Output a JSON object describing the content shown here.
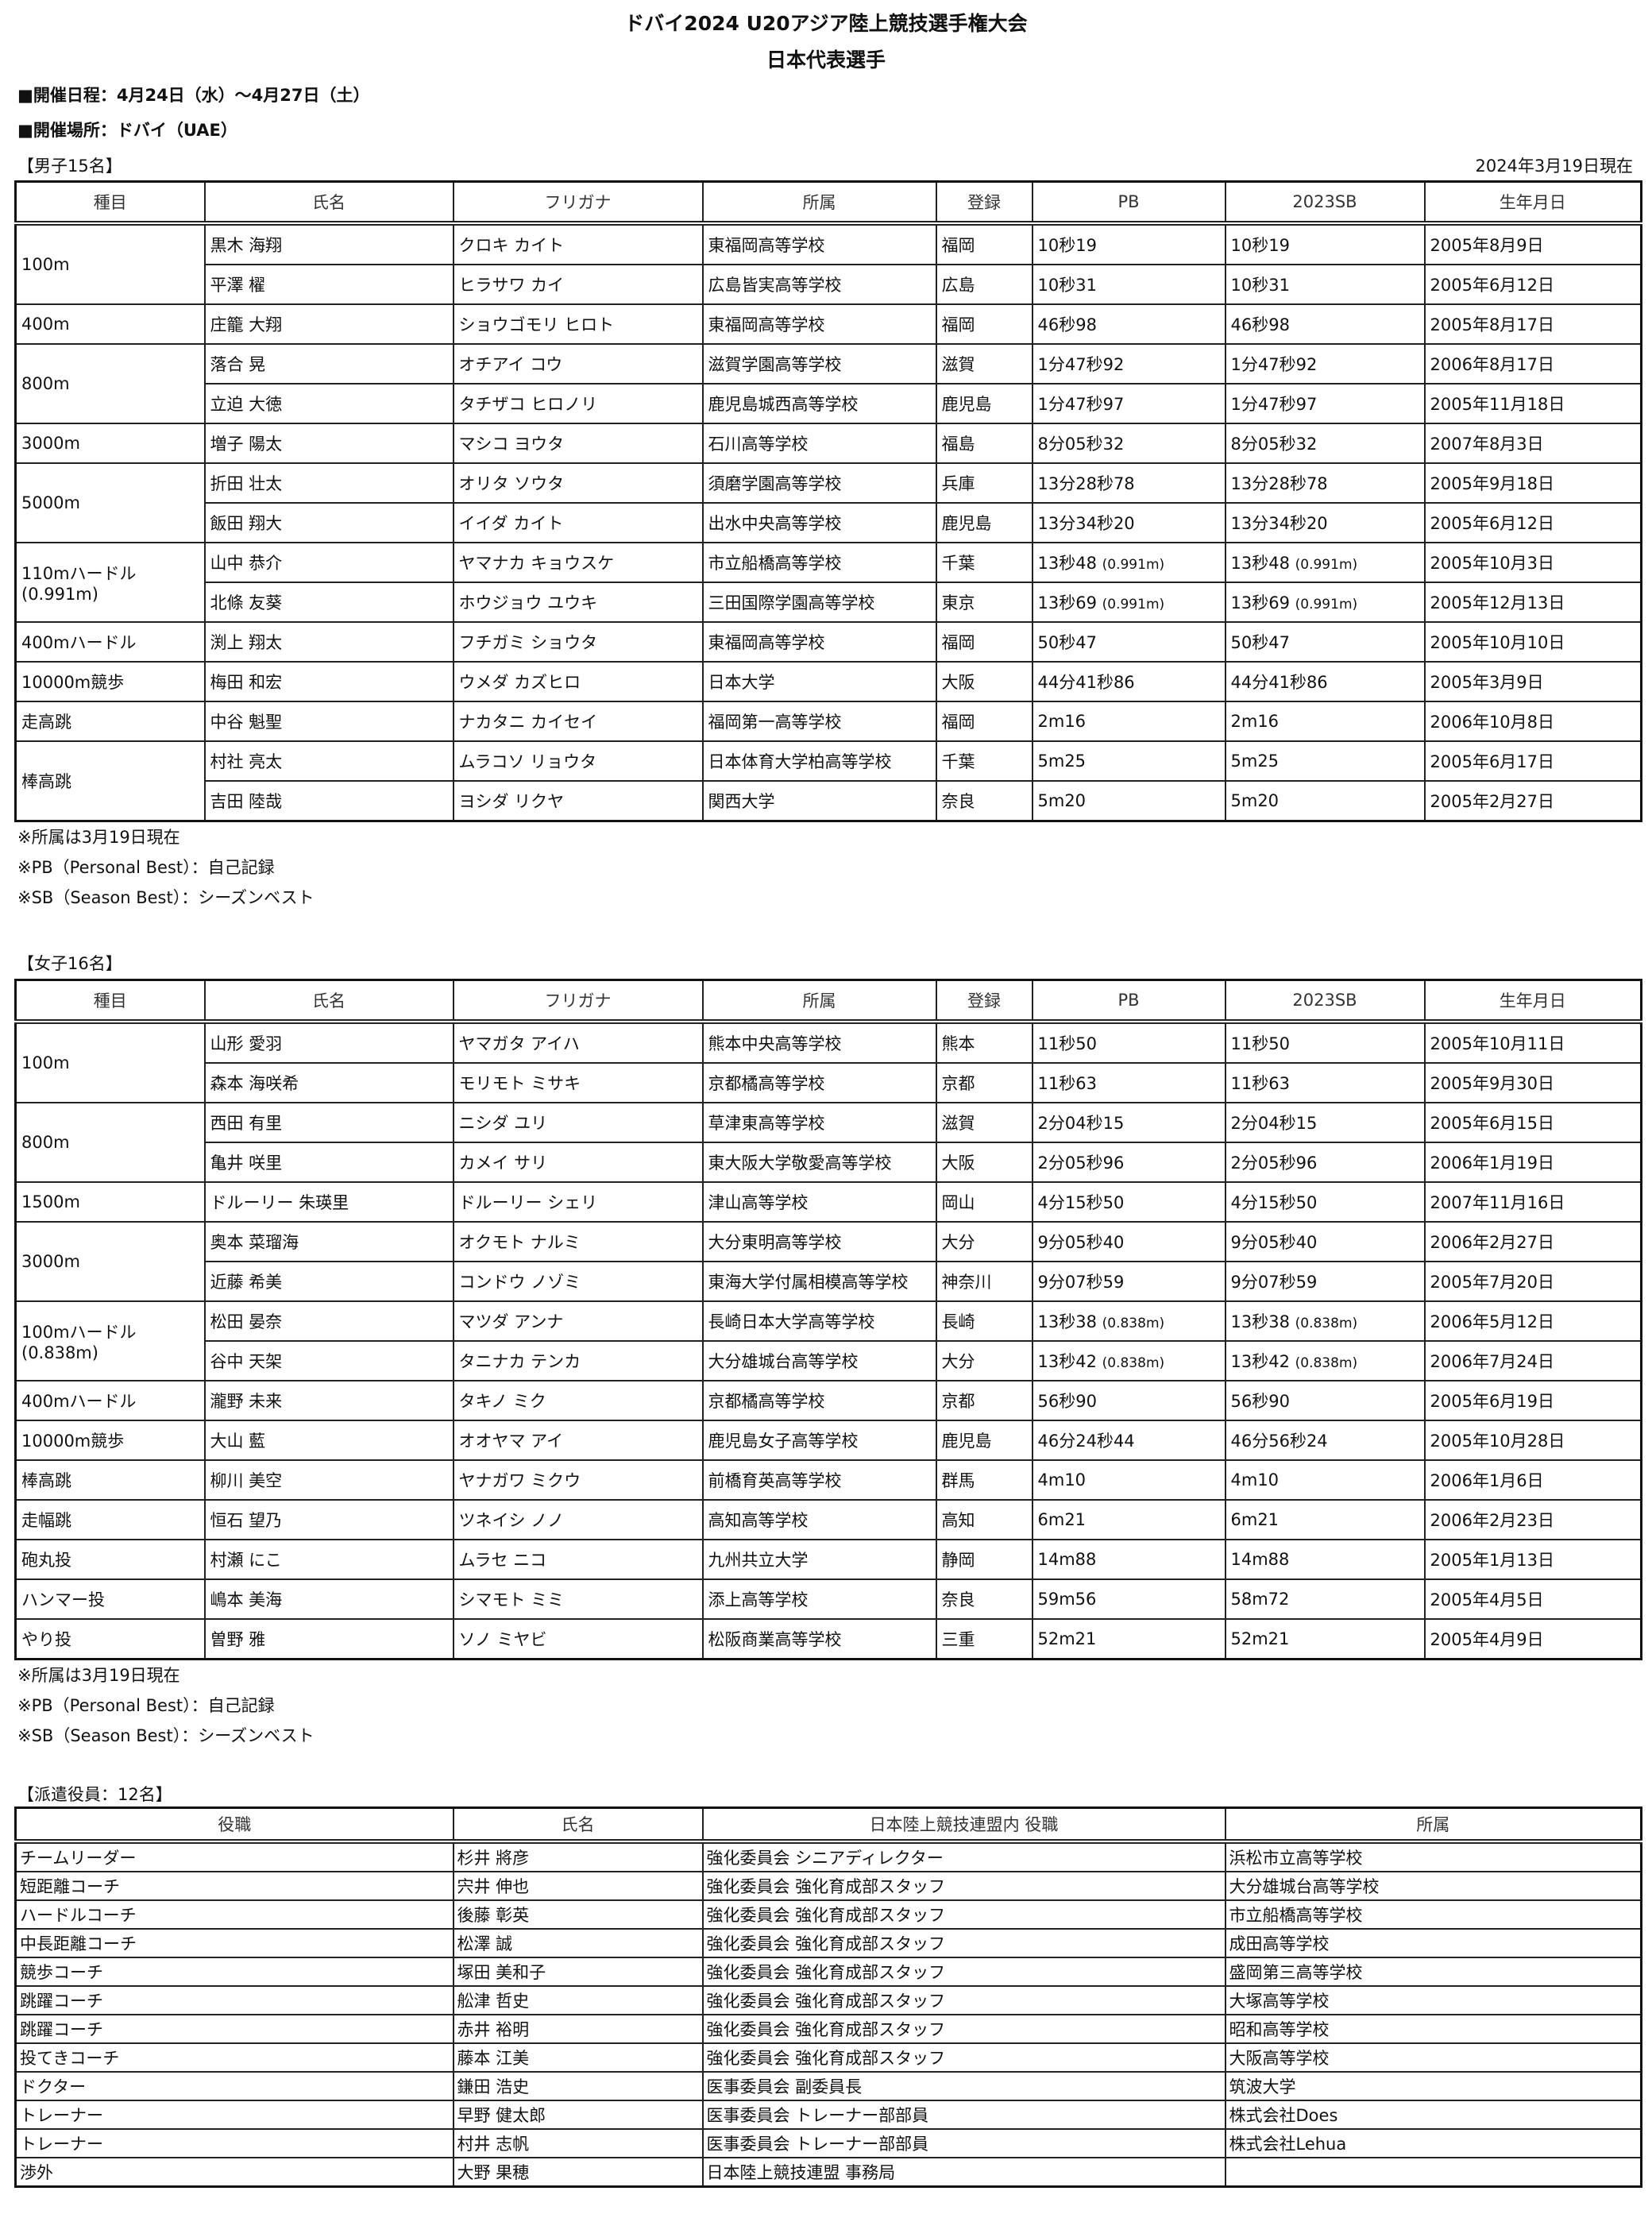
{
  "header": {
    "title": "ドバイ2024 U20アジア陸上競技選手権大会",
    "subtitle": "日本代表選手",
    "dates": "■開催日程：4月24日（水）～4月27日（土）",
    "venue": "■開催場所：ドバイ（UAE）"
  },
  "columns": [
    "種目",
    "氏名",
    "フリガナ",
    "所属",
    "登録",
    "PB",
    "2023SB",
    "生年月日"
  ],
  "notes": [
    "※所属は3月19日現在",
    "※PB（Personal Best）：自己記録",
    "※SB（Season Best）：シーズンベスト"
  ],
  "men": {
    "label": "【男子15名】",
    "as_of": "2024年3月19日現在",
    "events": [
      {
        "event": "100m",
        "athletes": [
          {
            "name": "黒木 海翔",
            "kana": "クロキ カイト",
            "team": "東福岡高等学校",
            "reg": "福岡",
            "pb": "10秒19",
            "sb": "10秒19",
            "dob": "2005年8月9日"
          },
          {
            "name": "平澤 櫂",
            "kana": "ヒラサワ カイ",
            "team": "広島皆実高等学校",
            "reg": "広島",
            "pb": "10秒31",
            "sb": "10秒31",
            "dob": "2005年6月12日"
          }
        ]
      },
      {
        "event": "400m",
        "athletes": [
          {
            "name": "庄籠 大翔",
            "kana": "ショウゴモリ ヒロト",
            "team": "東福岡高等学校",
            "reg": "福岡",
            "pb": "46秒98",
            "sb": "46秒98",
            "dob": "2005年8月17日"
          }
        ]
      },
      {
        "event": "800m",
        "athletes": [
          {
            "name": "落合 晃",
            "kana": "オチアイ コウ",
            "team": "滋賀学園高等学校",
            "reg": "滋賀",
            "pb": "1分47秒92",
            "sb": "1分47秒92",
            "dob": "2006年8月17日"
          },
          {
            "name": "立迫 大徳",
            "kana": "タチザコ ヒロノリ",
            "team": "鹿児島城西高等学校",
            "reg": "鹿児島",
            "pb": "1分47秒97",
            "sb": "1分47秒97",
            "dob": "2005年11月18日"
          }
        ]
      },
      {
        "event": "3000m",
        "athletes": [
          {
            "name": "増子 陽太",
            "kana": "マシコ ヨウタ",
            "team": "石川高等学校",
            "reg": "福島",
            "pb": "8分05秒32",
            "sb": "8分05秒32",
            "dob": "2007年8月3日"
          }
        ]
      },
      {
        "event": "5000m",
        "athletes": [
          {
            "name": "折田 壮太",
            "kana": "オリタ ソウタ",
            "team": "須磨学園高等学校",
            "reg": "兵庫",
            "pb": "13分28秒78",
            "sb": "13分28秒78",
            "dob": "2005年9月18日"
          },
          {
            "name": "飯田 翔大",
            "kana": "イイダ カイト",
            "team": "出水中央高等学校",
            "reg": "鹿児島",
            "pb": "13分34秒20",
            "sb": "13分34秒20",
            "dob": "2005年6月12日"
          }
        ]
      },
      {
        "event": "110mハードル",
        "event2": "(0.991m)",
        "athletes": [
          {
            "name": "山中 恭介",
            "kana": "ヤマナカ キョウスケ",
            "team": "市立船橋高等学校",
            "reg": "千葉",
            "pb": "13秒48",
            "pb_note": "(0.991m)",
            "sb": "13秒48",
            "sb_note": "(0.991m)",
            "dob": "2005年10月3日"
          },
          {
            "name": "北條 友葵",
            "kana": "ホウジョウ ユウキ",
            "team": "三田国際学園高等学校",
            "reg": "東京",
            "pb": "13秒69",
            "pb_note": "(0.991m)",
            "sb": "13秒69",
            "sb_note": "(0.991m)",
            "dob": "2005年12月13日"
          }
        ]
      },
      {
        "event": "400mハードル",
        "athletes": [
          {
            "name": "渕上 翔太",
            "kana": "フチガミ ショウタ",
            "team": "東福岡高等学校",
            "reg": "福岡",
            "pb": "50秒47",
            "sb": "50秒47",
            "dob": "2005年10月10日"
          }
        ]
      },
      {
        "event": "10000m競歩",
        "athletes": [
          {
            "name": "梅田 和宏",
            "kana": "ウメダ カズヒロ",
            "team": "日本大学",
            "reg": "大阪",
            "pb": "44分41秒86",
            "sb": "44分41秒86",
            "dob": "2005年3月9日"
          }
        ]
      },
      {
        "event": "走高跳",
        "athletes": [
          {
            "name": "中谷 魁聖",
            "kana": "ナカタニ カイセイ",
            "team": "福岡第一高等学校",
            "reg": "福岡",
            "pb": "2m16",
            "sb": "2m16",
            "dob": "2006年10月8日"
          }
        ]
      },
      {
        "event": "棒高跳",
        "athletes": [
          {
            "name": "村社 亮太",
            "kana": "ムラコソ リョウタ",
            "team": "日本体育大学柏高等学校",
            "reg": "千葉",
            "pb": "5m25",
            "sb": "5m25",
            "dob": "2005年6月17日"
          },
          {
            "name": "吉田 陸哉",
            "kana": "ヨシダ リクヤ",
            "team": "関西大学",
            "reg": "奈良",
            "pb": "5m20",
            "sb": "5m20",
            "dob": "2005年2月27日"
          }
        ]
      }
    ]
  },
  "women": {
    "label": "【女子16名】",
    "events": [
      {
        "event": "100m",
        "athletes": [
          {
            "name": "山形 愛羽",
            "kana": "ヤマガタ アイハ",
            "team": "熊本中央高等学校",
            "reg": "熊本",
            "pb": "11秒50",
            "sb": "11秒50",
            "dob": "2005年10月11日"
          },
          {
            "name": "森本 海咲希",
            "kana": "モリモト ミサキ",
            "team": "京都橘高等学校",
            "reg": "京都",
            "pb": "11秒63",
            "sb": "11秒63",
            "dob": "2005年9月30日"
          }
        ]
      },
      {
        "event": "800m",
        "athletes": [
          {
            "name": "西田 有里",
            "kana": "ニシダ ユリ",
            "team": "草津東高等学校",
            "reg": "滋賀",
            "pb": "2分04秒15",
            "sb": "2分04秒15",
            "dob": "2005年6月15日"
          },
          {
            "name": "亀井 咲里",
            "kana": "カメイ サリ",
            "team": "東大阪大学敬愛高等学校",
            "reg": "大阪",
            "pb": "2分05秒96",
            "sb": "2分05秒96",
            "dob": "2006年1月19日"
          }
        ]
      },
      {
        "event": "1500m",
        "athletes": [
          {
            "name": "ドルーリー 朱瑛里",
            "kana": "ドルーリー シェリ",
            "team": "津山高等学校",
            "reg": "岡山",
            "pb": "4分15秒50",
            "sb": "4分15秒50",
            "dob": "2007年11月16日"
          }
        ]
      },
      {
        "event": "3000m",
        "athletes": [
          {
            "name": "奥本 菜瑠海",
            "kana": "オクモト ナルミ",
            "team": "大分東明高等学校",
            "reg": "大分",
            "pb": "9分05秒40",
            "sb": "9分05秒40",
            "dob": "2006年2月27日"
          },
          {
            "name": "近藤 希美",
            "kana": "コンドウ ノゾミ",
            "team": "東海大学付属相模高等学校",
            "reg": "神奈川",
            "pb": "9分07秒59",
            "sb": "9分07秒59",
            "dob": "2005年7月20日"
          }
        ]
      },
      {
        "event": "100mハードル",
        "event2": "(0.838m)",
        "athletes": [
          {
            "name": "松田 晏奈",
            "kana": "マツダ アンナ",
            "team": "長崎日本大学高等学校",
            "reg": "長崎",
            "pb": "13秒38",
            "pb_note": "(0.838m)",
            "sb": "13秒38",
            "sb_note": "(0.838m)",
            "dob": "2006年5月12日"
          },
          {
            "name": "谷中 天架",
            "kana": "タニナカ テンカ",
            "team": "大分雄城台高等学校",
            "reg": "大分",
            "pb": "13秒42",
            "pb_note": "(0.838m)",
            "sb": "13秒42",
            "sb_note": "(0.838m)",
            "dob": "2006年7月24日"
          }
        ]
      },
      {
        "event": "400mハードル",
        "athletes": [
          {
            "name": "瀧野 未来",
            "kana": "タキノ ミク",
            "team": "京都橘高等学校",
            "reg": "京都",
            "pb": "56秒90",
            "sb": "56秒90",
            "dob": "2005年6月19日"
          }
        ]
      },
      {
        "event": "10000m競歩",
        "athletes": [
          {
            "name": "大山 藍",
            "kana": "オオヤマ アイ",
            "team": "鹿児島女子高等学校",
            "reg": "鹿児島",
            "pb": "46分24秒44",
            "sb": "46分56秒24",
            "dob": "2005年10月28日"
          }
        ]
      },
      {
        "event": "棒高跳",
        "athletes": [
          {
            "name": "柳川 美空",
            "kana": "ヤナガワ ミクウ",
            "team": "前橋育英高等学校",
            "reg": "群馬",
            "pb": "4m10",
            "sb": "4m10",
            "dob": "2006年1月6日"
          }
        ]
      },
      {
        "event": "走幅跳",
        "athletes": [
          {
            "name": "恒石 望乃",
            "kana": "ツネイシ ノノ",
            "team": "高知高等学校",
            "reg": "高知",
            "pb": "6m21",
            "sb": "6m21",
            "dob": "2006年2月23日"
          }
        ]
      },
      {
        "event": "砲丸投",
        "athletes": [
          {
            "name": "村瀬 にこ",
            "kana": "ムラセ ニコ",
            "team": "九州共立大学",
            "reg": "静岡",
            "pb": "14m88",
            "sb": "14m88",
            "dob": "2005年1月13日"
          }
        ]
      },
      {
        "event": "ハンマー投",
        "athletes": [
          {
            "name": "嶋本 美海",
            "kana": "シマモト ミミ",
            "team": "添上高等学校",
            "reg": "奈良",
            "pb": "59m56",
            "sb": "58m72",
            "dob": "2005年4月5日"
          }
        ]
      },
      {
        "event": "やり投",
        "athletes": [
          {
            "name": "曽野 雅",
            "kana": "ソノ ミヤビ",
            "team": "松阪商業高等学校",
            "reg": "三重",
            "pb": "52m21",
            "sb": "52m21",
            "dob": "2005年4月9日"
          }
        ]
      }
    ]
  },
  "officials": {
    "label": "【派遣役員：12名】",
    "columns": [
      "役職",
      "氏名",
      "日本陸上競技連盟内 役職",
      "所属"
    ],
    "rows": [
      [
        "チームリーダー",
        "杉井 將彦",
        "強化委員会 シニアディレクター",
        "浜松市立高等学校"
      ],
      [
        "短距離コーチ",
        "宍井 伸也",
        "強化委員会 強化育成部スタッフ",
        "大分雄城台高等学校"
      ],
      [
        "ハードルコーチ",
        "後藤 彰英",
        "強化委員会 強化育成部スタッフ",
        "市立船橋高等学校"
      ],
      [
        "中長距離コーチ",
        "松澤 誠",
        "強化委員会 強化育成部スタッフ",
        "成田高等学校"
      ],
      [
        "競歩コーチ",
        "塚田 美和子",
        "強化委員会 強化育成部スタッフ",
        "盛岡第三高等学校"
      ],
      [
        "跳躍コーチ",
        "舩津 哲史",
        "強化委員会 強化育成部スタッフ",
        "大塚高等学校"
      ],
      [
        "跳躍コーチ",
        "赤井 裕明",
        "強化委員会 強化育成部スタッフ",
        "昭和高等学校"
      ],
      [
        "投てきコーチ",
        "藤本 江美",
        "強化委員会 強化育成部スタッフ",
        "大阪高等学校"
      ],
      [
        "ドクター",
        "鎌田 浩史",
        "医事委員会 副委員長",
        "筑波大学"
      ],
      [
        "トレーナー",
        "早野 健太郎",
        "医事委員会 トレーナー部部員",
        "株式会社Does"
      ],
      [
        "トレーナー",
        "村井 志帆",
        "医事委員会 トレーナー部部員",
        "株式会社Lehua"
      ],
      [
        "渉外",
        "大野 果穂",
        "日本陸上競技連盟 事務局",
        ""
      ]
    ]
  }
}
